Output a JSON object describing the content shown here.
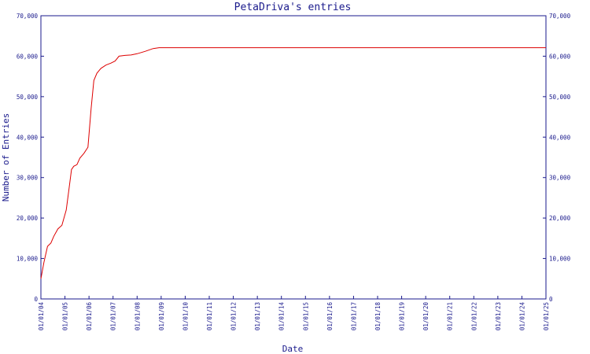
{
  "chart_data": {
    "type": "line",
    "title": "PetaDriva's entries",
    "xlabel": "Date",
    "ylabel": "Number of Entries",
    "x_tick_labels": [
      "01/01/04",
      "01/01/05",
      "01/01/06",
      "01/01/07",
      "01/01/08",
      "01/01/09",
      "01/01/10",
      "01/01/11",
      "01/01/12",
      "01/01/13",
      "01/01/14",
      "01/01/15",
      "01/01/16",
      "01/01/17",
      "01/01/18",
      "01/01/19",
      "01/01/20",
      "01/01/21",
      "01/01/22",
      "01/01/23",
      "01/01/24",
      "01/01/25"
    ],
    "y_tick_labels": [
      "0",
      "10,000",
      "20,000",
      "30,000",
      "40,000",
      "50,000",
      "60,000",
      "70,000"
    ],
    "y_ticks": [
      0,
      10000,
      20000,
      30000,
      40000,
      50000,
      60000,
      70000
    ],
    "xlim": [
      "2004-01-01",
      "2025-01-01"
    ],
    "ylim": [
      0,
      70000
    ],
    "grid": false,
    "right_axis": true,
    "series": [
      {
        "color": "#dd0000",
        "points": [
          [
            "2004-01-01",
            5000
          ],
          [
            "2004-02-15",
            9000
          ],
          [
            "2004-04-10",
            13000
          ],
          [
            "2004-06-01",
            13800
          ],
          [
            "2004-07-15",
            15500
          ],
          [
            "2004-09-15",
            17300
          ],
          [
            "2004-11-15",
            18200
          ],
          [
            "2005-01-20",
            22000
          ],
          [
            "2005-03-01",
            27000
          ],
          [
            "2005-04-10",
            32000
          ],
          [
            "2005-05-15",
            32800
          ],
          [
            "2005-07-01",
            33200
          ],
          [
            "2005-08-15",
            34800
          ],
          [
            "2005-10-15",
            36000
          ],
          [
            "2005-12-15",
            37500
          ],
          [
            "2006-02-01",
            47000
          ],
          [
            "2006-03-15",
            54000
          ],
          [
            "2006-05-01",
            55800
          ],
          [
            "2006-07-01",
            57000
          ],
          [
            "2006-09-15",
            57800
          ],
          [
            "2006-12-01",
            58300
          ],
          [
            "2007-02-01",
            58800
          ],
          [
            "2007-04-01",
            60000
          ],
          [
            "2007-07-01",
            60200
          ],
          [
            "2007-10-01",
            60300
          ],
          [
            "2008-01-01",
            60600
          ],
          [
            "2008-05-01",
            61200
          ],
          [
            "2008-09-01",
            61900
          ],
          [
            "2008-12-01",
            62100
          ],
          [
            "2010-01-01",
            62100
          ],
          [
            "2015-01-01",
            62100
          ],
          [
            "2020-01-01",
            62100
          ],
          [
            "2025-01-01",
            62100
          ]
        ]
      }
    ]
  }
}
